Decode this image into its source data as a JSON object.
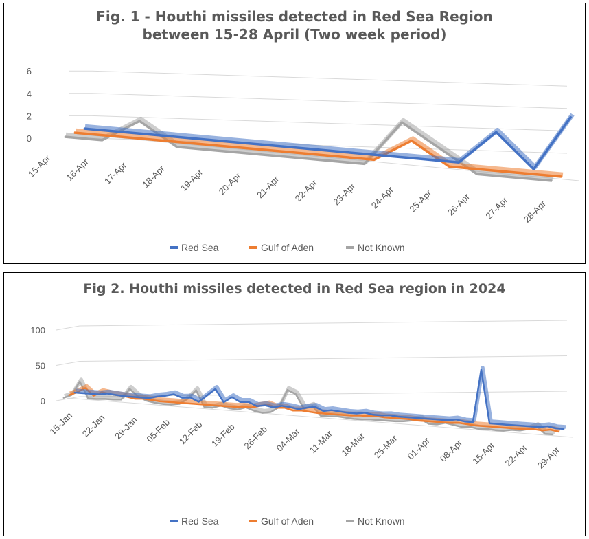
{
  "chart_data": [
    {
      "type": "line",
      "title": "Fig. 1 - Houthi missiles detected in Red Sea Region between 15-28 April (Two week period)",
      "title_lines": [
        "Fig. 1 - Houthi missiles detected in Red Sea Region",
        "between 15-28 April (Two week period)"
      ],
      "style": "3d-line",
      "categories": [
        "15-Apr",
        "16-Apr",
        "17-Apr",
        "18-Apr",
        "19-Apr",
        "20-Apr",
        "21-Apr",
        "22-Apr",
        "23-Apr",
        "24-Apr",
        "25-Apr",
        "26-Apr",
        "27-Apr",
        "28-Apr"
      ],
      "y_ticks": [
        "0",
        "2",
        "4",
        "6"
      ],
      "ylim": [
        0,
        6
      ],
      "legend_position": "bottom",
      "series": [
        {
          "name": "Red Sea",
          "color": "#4472C4",
          "values": [
            0,
            0,
            0,
            0,
            0,
            0,
            0,
            0,
            0,
            0,
            0,
            3,
            0,
            5
          ]
        },
        {
          "name": "Gulf of Aden",
          "color": "#ED7D31",
          "values": [
            0,
            0,
            0,
            0,
            0,
            0,
            0,
            0,
            0,
            2,
            0,
            0,
            0,
            0
          ]
        },
        {
          "name": "Not Known",
          "color": "#A5A5A5",
          "values": [
            0,
            0,
            2,
            0,
            0,
            0,
            0,
            0,
            0,
            4,
            2,
            0,
            0,
            0
          ]
        }
      ]
    },
    {
      "type": "line",
      "title": "Fig 2. Houthi missiles detected in Red Sea region in 2024",
      "style": "3d-line",
      "x_ticks": [
        "15-Jan",
        "22-Jan",
        "29-Jan",
        "05-Feb",
        "12-Feb",
        "19-Feb",
        "26-Feb",
        "04-Mar",
        "11-Mar",
        "18-Mar",
        "25-Mar",
        "01-Apr",
        "08-Apr",
        "15-Apr",
        "22-Apr",
        "29-Apr"
      ],
      "y_ticks": [
        "0",
        "50",
        "100"
      ],
      "ylim": [
        0,
        100
      ],
      "legend_position": "bottom",
      "series": [
        {
          "name": "Red Sea",
          "color": "#4472C4",
          "values": [
            0,
            0,
            0,
            0,
            2,
            1,
            0,
            0,
            0,
            0,
            3,
            5,
            8,
            4,
            5,
            0,
            10,
            20,
            2,
            10,
            4,
            5,
            0,
            2,
            0,
            3,
            2,
            0,
            3,
            5,
            0,
            2,
            1,
            0,
            0,
            2,
            0,
            0,
            1,
            0,
            0,
            0,
            0,
            0,
            0,
            0,
            2,
            0,
            0,
            75,
            0,
            0,
            0,
            0,
            0,
            0,
            0,
            2,
            0,
            0
          ]
        },
        {
          "name": "Gulf of Aden",
          "color": "#ED7D31",
          "values": [
            0,
            5,
            12,
            2,
            8,
            6,
            5,
            4,
            2,
            3,
            2,
            1,
            1,
            1,
            1,
            1,
            1,
            1,
            1,
            1,
            1,
            2,
            2,
            5,
            8,
            4,
            5,
            2,
            3,
            2,
            1,
            1,
            1,
            1,
            1,
            2,
            2,
            3,
            2,
            2,
            2,
            2,
            1,
            1,
            1,
            1,
            1,
            2,
            1,
            0,
            0,
            0,
            0,
            0,
            0,
            0,
            1,
            0,
            2,
            0
          ]
        },
        {
          "name": "Not Known",
          "color": "#A5A5A5",
          "values": [
            0,
            5,
            25,
            2,
            2,
            3,
            3,
            4,
            20,
            10,
            5,
            3,
            2,
            2,
            4,
            12,
            25,
            2,
            2,
            6,
            3,
            2,
            6,
            2,
            0,
            2,
            10,
            35,
            30,
            10,
            15,
            2,
            2,
            3,
            2,
            1,
            1,
            2,
            2,
            2,
            2,
            3,
            5,
            8,
            2,
            2,
            5,
            3,
            1,
            2,
            0,
            1,
            0,
            0,
            2,
            2,
            5,
            10,
            0,
            0
          ]
        }
      ]
    }
  ],
  "legend": [
    {
      "label": "Red Sea",
      "color": "#4472C4"
    },
    {
      "label": "Gulf of Aden",
      "color": "#ED7D31"
    },
    {
      "label": "Not Known",
      "color": "#A5A5A5"
    }
  ]
}
